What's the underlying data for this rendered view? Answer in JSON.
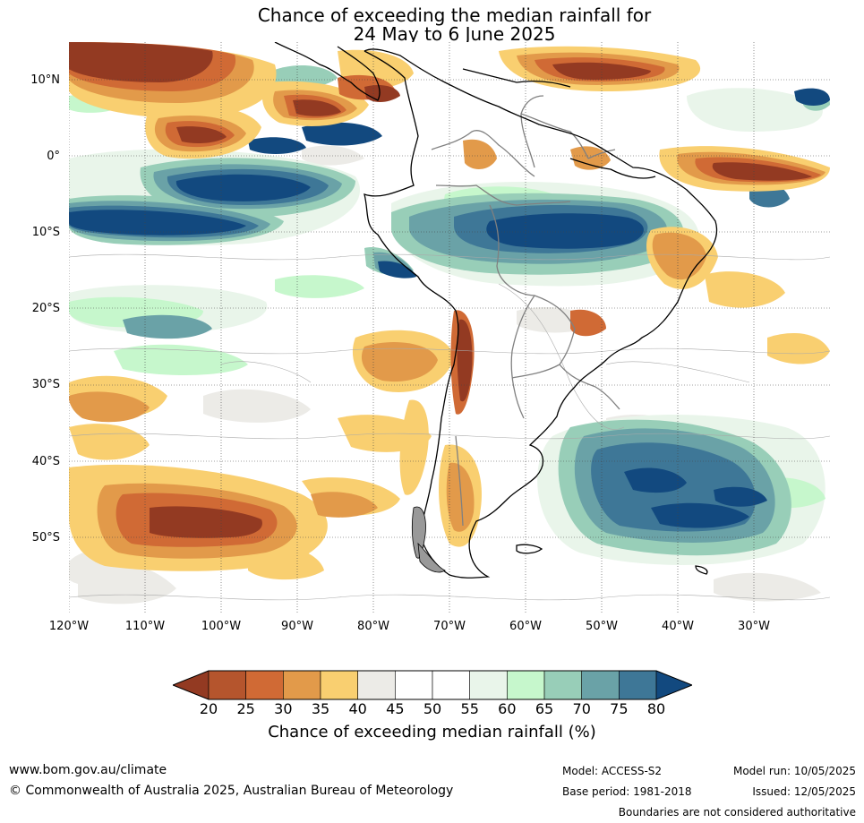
{
  "title": {
    "line1": "Chance of exceeding the median rainfall for",
    "line2": "24 May to 6 June 2025"
  },
  "map": {
    "lat_labels": [
      "10°N",
      "0°",
      "10°S",
      "20°S",
      "30°S",
      "40°S",
      "50°S"
    ],
    "lon_labels": [
      "120°W",
      "110°W",
      "100°W",
      "90°W",
      "80°W",
      "70°W",
      "60°W",
      "50°W",
      "40°W",
      "30°W"
    ],
    "colors": {
      "c20": "#933a22",
      "c25": "#b5552d",
      "c30": "#d06a35",
      "c35": "#e29a4a",
      "c40": "#f9cf70",
      "c45": "#ecebe7",
      "c60": "#e9f5ea",
      "c65": "#c6f7cc",
      "c70": "#98ceb8",
      "c75": "#6aa2a7",
      "c80": "#3e7797",
      "c85": "#12497f",
      "coast": "#000000",
      "border": "#808080",
      "contour": "#a9a9a9",
      "grid": "#444444"
    }
  },
  "colorbar": {
    "ticks": [
      "20",
      "25",
      "30",
      "35",
      "40",
      "45",
      "50",
      "55",
      "60",
      "65",
      "70",
      "75",
      "80"
    ],
    "colors": [
      "#933a22",
      "#b5552d",
      "#d06a35",
      "#e29a4a",
      "#f9cf70",
      "#ecebe7",
      "#ffffff",
      "#ffffff",
      "#e9f5ea",
      "#c6f7cc",
      "#98ceb8",
      "#6aa2a7",
      "#3e7797",
      "#12497f"
    ],
    "label": "Chance of exceeding median rainfall (%)"
  },
  "footer": {
    "site": "www.bom.gov.au/climate",
    "copyright": "© Commonwealth of Australia 2025, Australian Bureau of Meteorology",
    "model": "Model: ACCESS-S2",
    "base_period": "Base period: 1981-2018",
    "model_run": "Model run: 10/05/2025",
    "issued": "Issued: 12/05/2025",
    "disclaimer": "Boundaries are not considered authoritative"
  }
}
